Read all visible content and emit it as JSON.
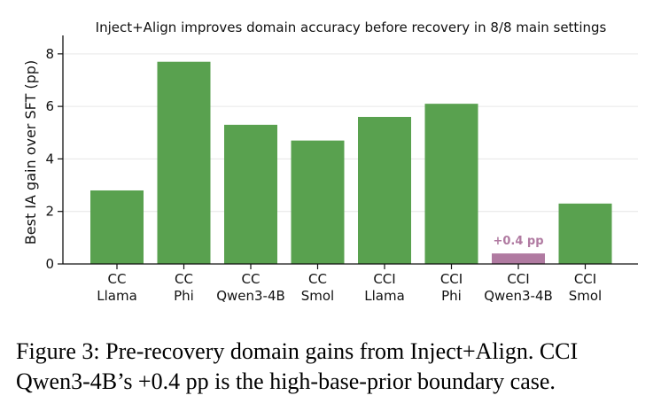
{
  "chart_data": {
    "type": "bar",
    "title": "Inject+Align improves domain accuracy before recovery in 8/8 main settings",
    "ylabel": "Best IA gain over SFT (pp)",
    "xlabel": "",
    "categories": [
      [
        "CC",
        "Llama"
      ],
      [
        "CC",
        "Phi"
      ],
      [
        "CC",
        "Qwen3-4B"
      ],
      [
        "CC",
        "Smol"
      ],
      [
        "CCI",
        "Llama"
      ],
      [
        "CCI",
        "Phi"
      ],
      [
        "CCI",
        "Qwen3-4B"
      ],
      [
        "CCI",
        "Smol"
      ]
    ],
    "values": [
      2.8,
      7.7,
      5.3,
      4.7,
      5.6,
      6.1,
      0.4,
      2.3
    ],
    "colors": [
      "#59a14f",
      "#59a14f",
      "#59a14f",
      "#59a14f",
      "#59a14f",
      "#59a14f",
      "#b07aa1",
      "#59a14f"
    ],
    "ylim": [
      0,
      8.5
    ],
    "yticks": [
      0,
      2,
      4,
      6,
      8
    ],
    "grid": "horizontal",
    "annotations": [
      {
        "category_index": 6,
        "text": "+0.4 pp",
        "color": "#b07aa1"
      }
    ]
  },
  "caption": {
    "line1": "Figure 3: Pre-recovery domain gains from Inject+Align. CCI",
    "line2": "Qwen3-4B’s +0.4 pp is the high-base-prior boundary case."
  }
}
